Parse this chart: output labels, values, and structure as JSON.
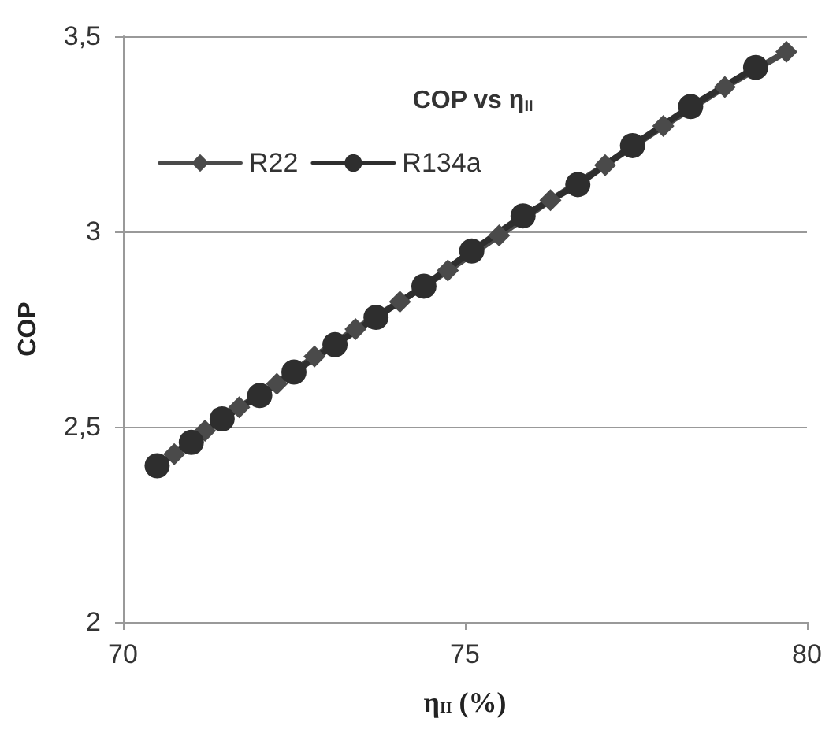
{
  "chart_data": {
    "type": "line",
    "title": "COP vs η$_{II}$",
    "xlabel": "η$_{II}$ (%)",
    "ylabel": "COP",
    "xlim": [
      70,
      80
    ],
    "xticks": [
      70,
      75,
      80
    ],
    "ylim": [
      2,
      3.5
    ],
    "yticks": [
      2,
      {
        "value": 2.5,
        "label": "2,5"
      },
      3,
      {
        "value": 3.5,
        "label": "3,5"
      }
    ],
    "grid": "y",
    "legend": "top left",
    "line_style": "solid",
    "series": [
      {
        "name": "R22",
        "color": "#4a4a4a",
        "marker": "diamond",
        "x": [
          70.75,
          71.2,
          71.7,
          72.25,
          72.8,
          73.4,
          74.05,
          74.75,
          75.5,
          76.25,
          77.05,
          77.9,
          78.8,
          79.7
        ],
        "values": [
          2.43,
          2.49,
          2.55,
          2.61,
          2.68,
          2.75,
          2.82,
          2.9,
          2.99,
          3.08,
          3.17,
          3.27,
          3.37,
          3.46
        ]
      },
      {
        "name": "R134a",
        "color": "#2e2e2e",
        "marker": "circle",
        "x": [
          70.5,
          71.0,
          71.45,
          72.0,
          72.5,
          73.1,
          73.7,
          74.4,
          75.1,
          75.85,
          76.65,
          77.45,
          78.3,
          79.25
        ],
        "values": [
          2.4,
          2.46,
          2.52,
          2.58,
          2.64,
          2.71,
          2.78,
          2.86,
          2.95,
          3.04,
          3.12,
          3.22,
          3.32,
          3.42
        ]
      }
    ]
  }
}
